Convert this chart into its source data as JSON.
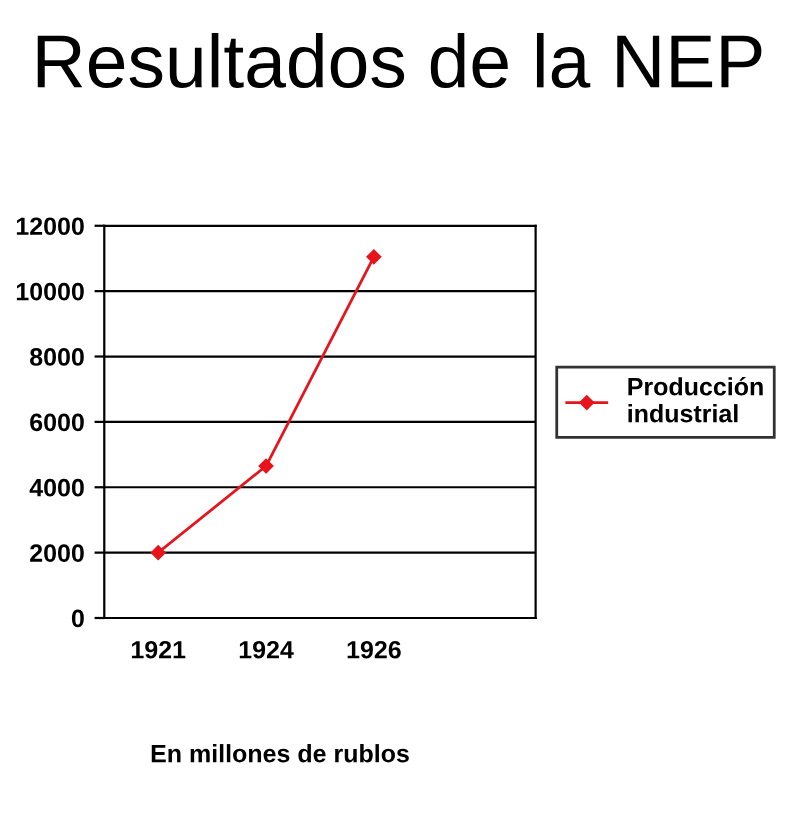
{
  "chart_data": {
    "type": "line",
    "title": "Resultados de la NEP",
    "categories": [
      "1921",
      "1924",
      "1926",
      null
    ],
    "series": [
      {
        "name": "Producción\nindustrial",
        "color": "#e8141b",
        "values": [
          2000,
          4650,
          11050,
          null
        ]
      }
    ],
    "ylim": [
      0,
      12000
    ],
    "yticks": [
      0,
      2000,
      4000,
      6000,
      8000,
      10000,
      12000
    ],
    "grid": "y",
    "legend": "right",
    "marker": "diamond",
    "line_style": "solid",
    "annotations": [
      "En millones de rublos"
    ]
  }
}
